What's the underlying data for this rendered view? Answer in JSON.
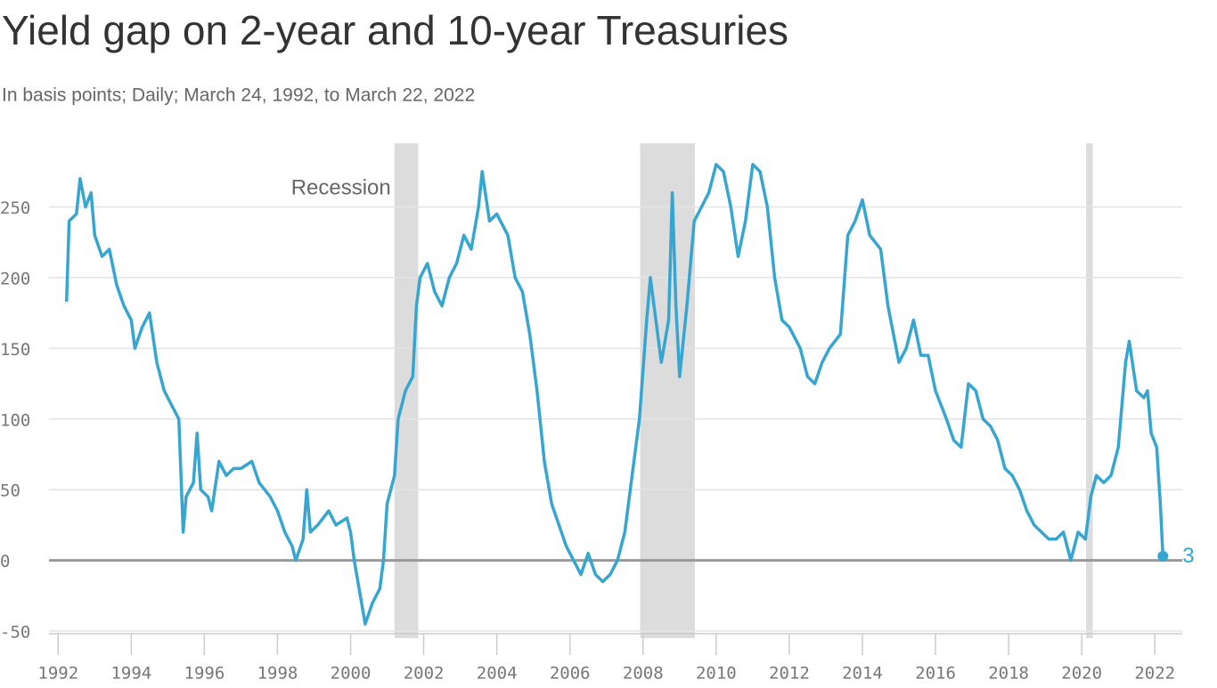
{
  "chart_data": {
    "type": "line",
    "title": "Yield gap on 2-year and 10-year Treasuries",
    "subtitle": "In basis points; Daily; March 24, 1992, to March 22, 2022",
    "annotation": "Recession",
    "color": "#36a6d1",
    "recession_color": "#dcdcdc",
    "recessions": [
      [
        2001.2,
        2001.85
      ],
      [
        2007.92,
        2009.42
      ],
      [
        2020.12,
        2020.3
      ]
    ],
    "x": [
      1992.23,
      1992.3,
      1992.5,
      1992.6,
      1992.75,
      1992.9,
      1993.0,
      1993.2,
      1993.4,
      1993.6,
      1993.8,
      1994.0,
      1994.1,
      1994.3,
      1994.5,
      1994.7,
      1994.9,
      1995.1,
      1995.3,
      1995.42,
      1995.5,
      1995.7,
      1995.8,
      1995.9,
      1996.1,
      1996.2,
      1996.4,
      1996.6,
      1996.8,
      1997.0,
      1997.3,
      1997.5,
      1997.8,
      1998.0,
      1998.2,
      1998.4,
      1998.5,
      1998.7,
      1998.8,
      1998.9,
      1999.1,
      1999.4,
      1999.6,
      1999.9,
      2000.0,
      2000.1,
      2000.3,
      2000.4,
      2000.6,
      2000.8,
      2000.9,
      2001.0,
      2001.2,
      2001.3,
      2001.5,
      2001.7,
      2001.8,
      2001.9,
      2002.1,
      2002.3,
      2002.5,
      2002.7,
      2002.9,
      2003.1,
      2003.3,
      2003.5,
      2003.6,
      2003.8,
      2004.0,
      2004.3,
      2004.5,
      2004.7,
      2004.9,
      2005.1,
      2005.3,
      2005.5,
      2005.7,
      2005.9,
      2006.1,
      2006.3,
      2006.5,
      2006.7,
      2006.9,
      2007.1,
      2007.3,
      2007.5,
      2007.7,
      2007.9,
      2008.1,
      2008.2,
      2008.4,
      2008.5,
      2008.7,
      2008.8,
      2008.9,
      2009.0,
      2009.2,
      2009.4,
      2009.6,
      2009.8,
      2010.0,
      2010.2,
      2010.4,
      2010.6,
      2010.8,
      2011.0,
      2011.2,
      2011.4,
      2011.6,
      2011.8,
      2012.0,
      2012.3,
      2012.5,
      2012.7,
      2012.9,
      2013.1,
      2013.4,
      2013.6,
      2013.8,
      2014.0,
      2014.2,
      2014.5,
      2014.7,
      2015.0,
      2015.2,
      2015.4,
      2015.6,
      2015.8,
      2016.0,
      2016.3,
      2016.5,
      2016.7,
      2016.9,
      2017.1,
      2017.3,
      2017.5,
      2017.7,
      2017.9,
      2018.1,
      2018.3,
      2018.5,
      2018.7,
      2018.9,
      2019.1,
      2019.3,
      2019.5,
      2019.7,
      2019.9,
      2020.1,
      2020.25,
      2020.4,
      2020.6,
      2020.8,
      2021.0,
      2021.2,
      2021.3,
      2021.5,
      2021.7,
      2021.8,
      2021.9,
      2022.05,
      2022.15,
      2022.22
    ],
    "values": [
      183,
      240,
      245,
      270,
      250,
      260,
      230,
      215,
      220,
      195,
      180,
      170,
      150,
      165,
      175,
      140,
      120,
      110,
      100,
      20,
      45,
      55,
      90,
      50,
      45,
      35,
      70,
      60,
      65,
      65,
      70,
      55,
      45,
      35,
      20,
      10,
      0,
      15,
      50,
      20,
      25,
      35,
      25,
      30,
      20,
      0,
      -30,
      -45,
      -30,
      -20,
      0,
      40,
      60,
      100,
      120,
      130,
      180,
      200,
      210,
      190,
      180,
      200,
      210,
      230,
      220,
      250,
      275,
      240,
      245,
      230,
      200,
      190,
      160,
      120,
      70,
      40,
      25,
      10,
      0,
      -10,
      5,
      -10,
      -15,
      -10,
      0,
      20,
      60,
      100,
      170,
      200,
      160,
      140,
      170,
      260,
      180,
      130,
      180,
      240,
      250,
      260,
      280,
      275,
      250,
      215,
      240,
      280,
      275,
      250,
      200,
      170,
      165,
      150,
      130,
      125,
      140,
      150,
      160,
      230,
      240,
      255,
      230,
      220,
      180,
      140,
      150,
      170,
      145,
      145,
      120,
      100,
      85,
      80,
      125,
      120,
      100,
      95,
      85,
      65,
      60,
      50,
      35,
      25,
      20,
      15,
      15,
      20,
      0,
      20,
      15,
      45,
      60,
      55,
      60,
      80,
      140,
      155,
      120,
      115,
      120,
      90,
      80,
      40,
      3
    ],
    "xlim": [
      1991.75,
      2022.75
    ],
    "xticks": [
      1992,
      1994,
      1996,
      1998,
      2000,
      2002,
      2004,
      2006,
      2008,
      2010,
      2012,
      2014,
      2016,
      2018,
      2020,
      2022
    ],
    "ylim": [
      -55,
      295
    ],
    "yticks": [
      -50,
      0,
      50,
      100,
      150,
      200,
      250
    ],
    "grid": true
  }
}
